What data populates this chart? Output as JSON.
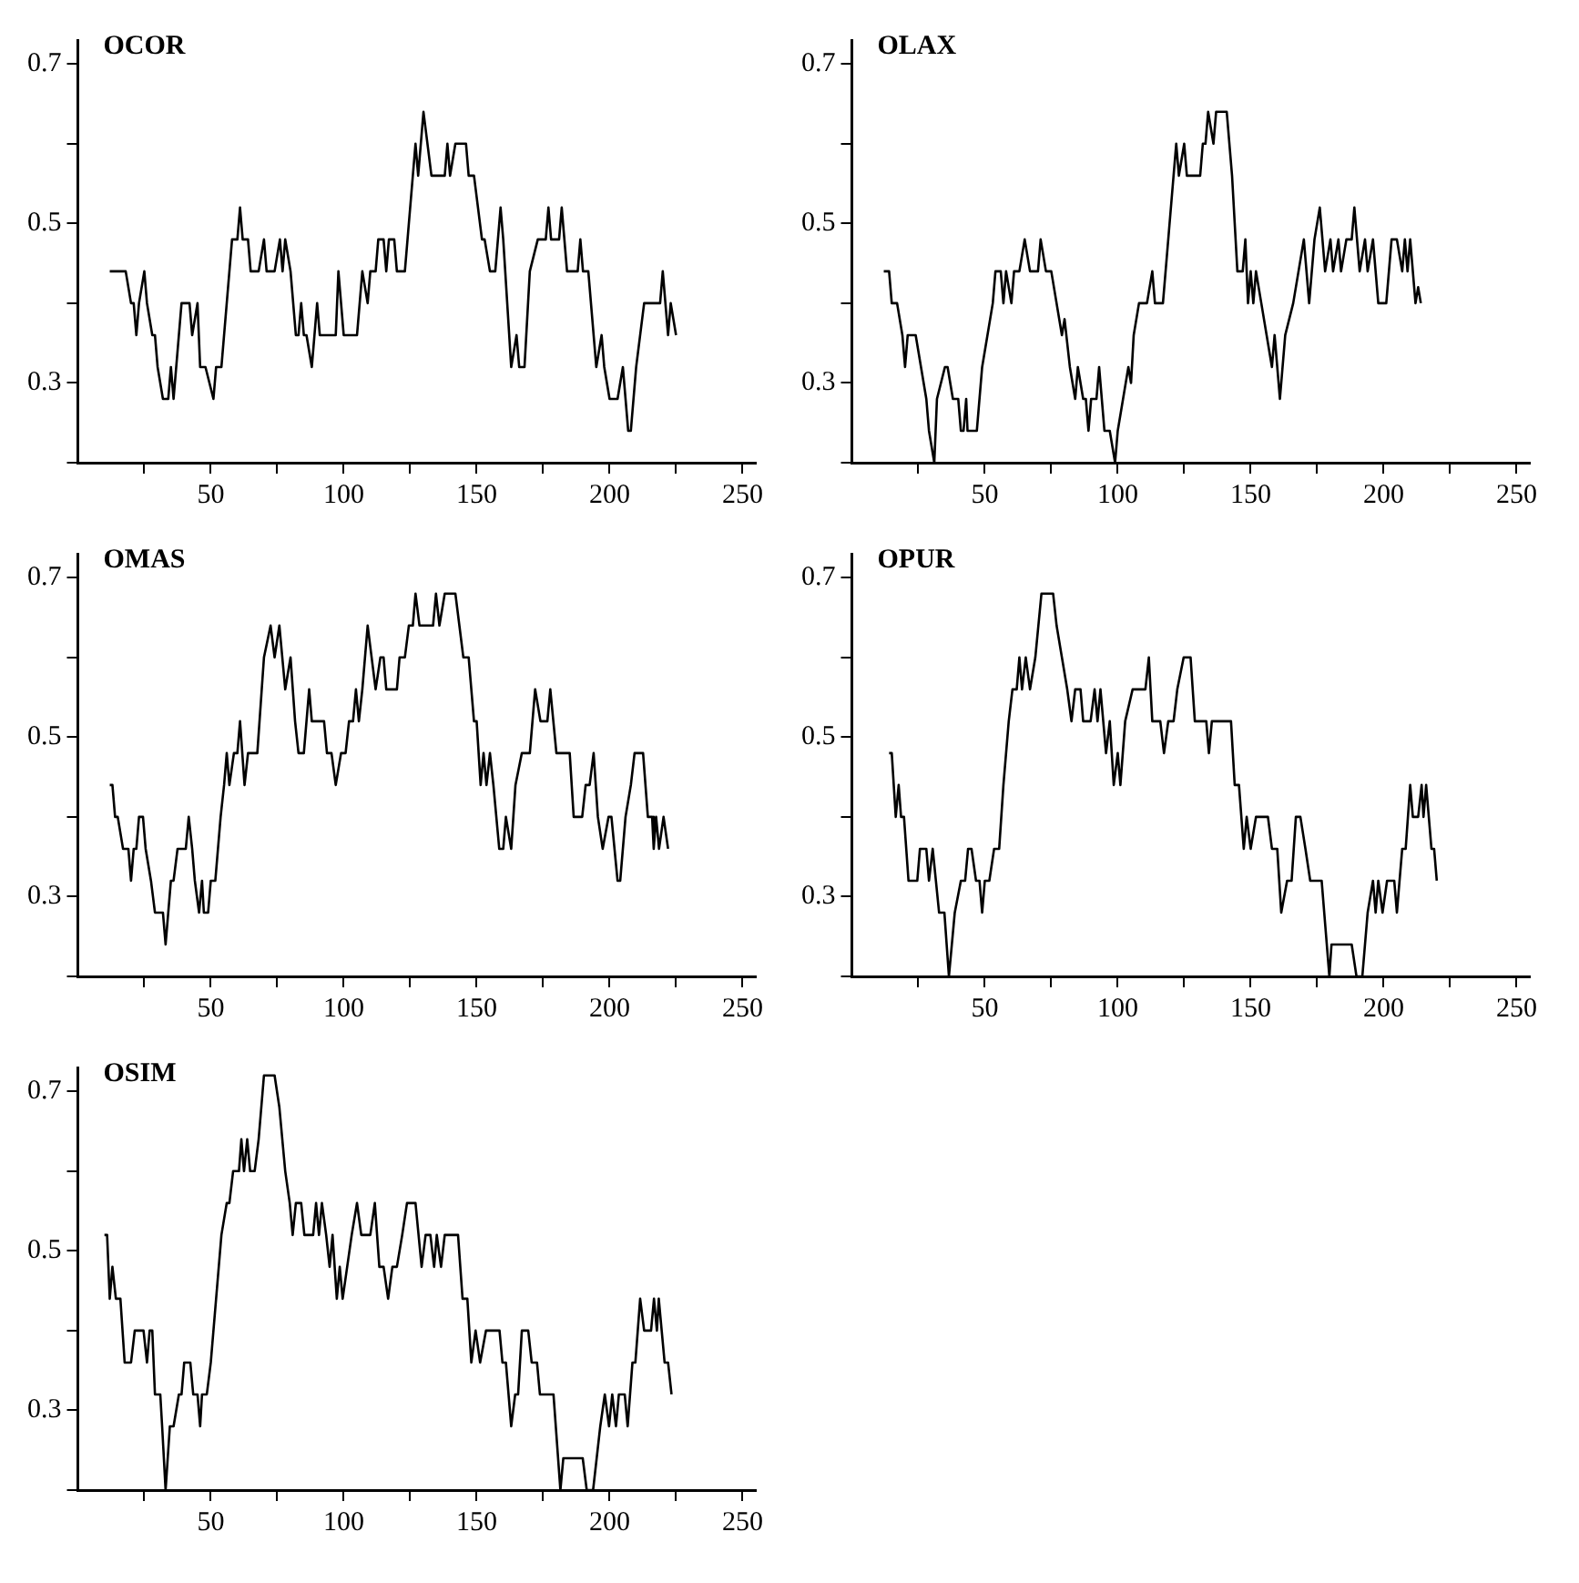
{
  "chart_data": [
    {
      "type": "line",
      "title": "OCOR",
      "color": "#000000",
      "marker": "none",
      "xlim": [
        0,
        255
      ],
      "ylim": [
        0.2,
        0.73
      ],
      "xticks": [
        {
          "value": 25,
          "label": null
        },
        50,
        {
          "value": 75,
          "label": null
        },
        100,
        {
          "value": 125,
          "label": null
        },
        150,
        {
          "value": 175,
          "label": null
        },
        200,
        {
          "value": 225,
          "label": null
        },
        250
      ],
      "yticks": [
        {
          "value": 0.2,
          "label": null
        },
        0.3,
        {
          "value": 0.4,
          "label": null
        },
        0.5,
        {
          "value": 0.6,
          "label": null
        },
        0.7
      ],
      "x": [
        12,
        18,
        20,
        21,
        22,
        23,
        25,
        26,
        28,
        29,
        30,
        32,
        34,
        35,
        36,
        38,
        39,
        42,
        43,
        45,
        46,
        48,
        51,
        52,
        54,
        58,
        60,
        61,
        62,
        64,
        65,
        68,
        70,
        71,
        74,
        76,
        77,
        78,
        80,
        82,
        83,
        84,
        85,
        86,
        88,
        90,
        91,
        97,
        98,
        100,
        105,
        107,
        109,
        110,
        112,
        113,
        115,
        116,
        117,
        119,
        120,
        123,
        127,
        128,
        130,
        133,
        138,
        139,
        140,
        142,
        146,
        147,
        149,
        152,
        153,
        155,
        157,
        159,
        160,
        163,
        165,
        166,
        168,
        170,
        173,
        176,
        177,
        178,
        181,
        182,
        184,
        188,
        189,
        190,
        192,
        195,
        197,
        198,
        200,
        203,
        205,
        207,
        208,
        210,
        213,
        219,
        220,
        222,
        223,
        225
      ],
      "values": [
        0.44,
        0.44,
        0.4,
        0.4,
        0.36,
        0.4,
        0.44,
        0.4,
        0.36,
        0.36,
        0.32,
        0.28,
        0.28,
        0.32,
        0.28,
        0.36,
        0.4,
        0.4,
        0.36,
        0.4,
        0.32,
        0.32,
        0.28,
        0.32,
        0.32,
        0.48,
        0.48,
        0.52,
        0.48,
        0.48,
        0.44,
        0.44,
        0.48,
        0.44,
        0.44,
        0.48,
        0.44,
        0.48,
        0.44,
        0.36,
        0.36,
        0.4,
        0.36,
        0.36,
        0.32,
        0.4,
        0.36,
        0.36,
        0.44,
        0.36,
        0.36,
        0.44,
        0.4,
        0.44,
        0.44,
        0.48,
        0.48,
        0.44,
        0.48,
        0.48,
        0.44,
        0.44,
        0.6,
        0.56,
        0.64,
        0.56,
        0.56,
        0.6,
        0.56,
        0.6,
        0.6,
        0.56,
        0.56,
        0.48,
        0.48,
        0.44,
        0.44,
        0.52,
        0.48,
        0.32,
        0.36,
        0.32,
        0.32,
        0.44,
        0.48,
        0.48,
        0.52,
        0.48,
        0.48,
        0.52,
        0.44,
        0.44,
        0.48,
        0.44,
        0.44,
        0.32,
        0.36,
        0.32,
        0.28,
        0.28,
        0.32,
        0.24,
        0.24,
        0.32,
        0.4,
        0.4,
        0.44,
        0.36,
        0.4,
        0.36
      ]
    },
    {
      "type": "line",
      "title": "OLAX",
      "color": "#000000",
      "marker": "none",
      "xlim": [
        0,
        255
      ],
      "ylim": [
        0.2,
        0.73
      ],
      "xticks": [
        {
          "value": 25,
          "label": null
        },
        50,
        {
          "value": 75,
          "label": null
        },
        100,
        {
          "value": 125,
          "label": null
        },
        150,
        {
          "value": 175,
          "label": null
        },
        200,
        {
          "value": 225,
          "label": null
        },
        250
      ],
      "yticks": [
        {
          "value": 0.2,
          "label": null
        },
        0.3,
        {
          "value": 0.4,
          "label": null
        },
        0.5,
        {
          "value": 0.6,
          "label": null
        },
        0.7
      ],
      "x": [
        12,
        14,
        15,
        17,
        19,
        20,
        21,
        24,
        26,
        28,
        29,
        31,
        32,
        35,
        36,
        38,
        40,
        41,
        42,
        43,
        43.5,
        47,
        49,
        51,
        53,
        54,
        56,
        57,
        58,
        60,
        61,
        63,
        65,
        67,
        70,
        71,
        73,
        75,
        78,
        79,
        80,
        82,
        84,
        85,
        87,
        88,
        89,
        90,
        92,
        93,
        95,
        97,
        99,
        100,
        102,
        104,
        105,
        106,
        108,
        111,
        113,
        114,
        117,
        121,
        122,
        123,
        125,
        126,
        131,
        132,
        133,
        134,
        136,
        137,
        141,
        143,
        145,
        147,
        148,
        149,
        150,
        151,
        152,
        154,
        156,
        158,
        159,
        161,
        163,
        166,
        168,
        170,
        172,
        174,
        176,
        178,
        180,
        181,
        183,
        184,
        186,
        188,
        189,
        191,
        193,
        194,
        196,
        198,
        201,
        203,
        205,
        207,
        208,
        209,
        210,
        212,
        213,
        214
      ],
      "values": [
        0.44,
        0.44,
        0.4,
        0.4,
        0.36,
        0.32,
        0.36,
        0.36,
        0.32,
        0.28,
        0.24,
        0.2,
        0.28,
        0.32,
        0.32,
        0.28,
        0.28,
        0.24,
        0.24,
        0.28,
        0.24,
        0.24,
        0.32,
        0.36,
        0.4,
        0.44,
        0.44,
        0.4,
        0.44,
        0.4,
        0.44,
        0.44,
        0.48,
        0.44,
        0.44,
        0.48,
        0.44,
        0.44,
        0.38,
        0.36,
        0.38,
        0.32,
        0.28,
        0.32,
        0.28,
        0.28,
        0.24,
        0.28,
        0.28,
        0.32,
        0.24,
        0.24,
        0.2,
        0.24,
        0.28,
        0.32,
        0.3,
        0.36,
        0.4,
        0.4,
        0.44,
        0.4,
        0.4,
        0.56,
        0.6,
        0.56,
        0.6,
        0.56,
        0.56,
        0.6,
        0.6,
        0.64,
        0.6,
        0.64,
        0.64,
        0.56,
        0.44,
        0.44,
        0.48,
        0.4,
        0.44,
        0.4,
        0.44,
        0.4,
        0.36,
        0.32,
        0.36,
        0.28,
        0.36,
        0.4,
        0.44,
        0.48,
        0.4,
        0.48,
        0.52,
        0.44,
        0.48,
        0.44,
        0.48,
        0.44,
        0.48,
        0.48,
        0.52,
        0.44,
        0.48,
        0.44,
        0.48,
        0.4,
        0.4,
        0.48,
        0.48,
        0.44,
        0.48,
        0.44,
        0.48,
        0.4,
        0.42,
        0.4
      ]
    },
    {
      "type": "line",
      "title": "OMAS",
      "color": "#000000",
      "marker": "none",
      "xlim": [
        0,
        255
      ],
      "ylim": [
        0.2,
        0.73
      ],
      "xticks": [
        {
          "value": 25,
          "label": null
        },
        50,
        {
          "value": 75,
          "label": null
        },
        100,
        {
          "value": 125,
          "label": null
        },
        150,
        {
          "value": 175,
          "label": null
        },
        200,
        {
          "value": 225,
          "label": null
        },
        250
      ],
      "yticks": [
        {
          "value": 0.2,
          "label": null
        },
        0.3,
        {
          "value": 0.4,
          "label": null
        },
        0.5,
        {
          "value": 0.6,
          "label": null
        },
        0.7
      ],
      "x": [
        12,
        13,
        14,
        15,
        17,
        19,
        20,
        21,
        22,
        23,
        24.5,
        25.5,
        27.5,
        29,
        32,
        33,
        35,
        36,
        37.5,
        40.6,
        41.7,
        43,
        44,
        45.6,
        46.7,
        47.4,
        49,
        50,
        51.7,
        53.7,
        55,
        56,
        57,
        58.7,
        60,
        61,
        62.7,
        64,
        67.5,
        70,
        72.5,
        74,
        75.8,
        78,
        80,
        81.7,
        83,
        85,
        87,
        88,
        92.6,
        93.7,
        95.4,
        97,
        99,
        100.7,
        102,
        103.5,
        104.6,
        105.7,
        107,
        109,
        110.5,
        112,
        113.8,
        115,
        116,
        120,
        121,
        123,
        124.5,
        126,
        127,
        128.5,
        133.6,
        134.7,
        136,
        138,
        142,
        145,
        147,
        149,
        150,
        151.5,
        152.6,
        153.7,
        155,
        156.3,
        158.5,
        160,
        161,
        163,
        164.6,
        167,
        170,
        172,
        174,
        176.6,
        177.7,
        180,
        185,
        186.5,
        189.7,
        191,
        192.5,
        194,
        195.6,
        197.4,
        199.6,
        200.7,
        203,
        204,
        206,
        208,
        209.4,
        212.6,
        214.4,
        216,
        216.6,
        217.5,
        218.6,
        220.3,
        222
      ],
      "values": [
        0.44,
        0.44,
        0.4,
        0.4,
        0.36,
        0.36,
        0.32,
        0.36,
        0.36,
        0.4,
        0.4,
        0.36,
        0.32,
        0.28,
        0.28,
        0.24,
        0.32,
        0.32,
        0.36,
        0.36,
        0.4,
        0.36,
        0.32,
        0.28,
        0.32,
        0.28,
        0.28,
        0.32,
        0.32,
        0.4,
        0.44,
        0.48,
        0.44,
        0.48,
        0.48,
        0.52,
        0.44,
        0.48,
        0.48,
        0.6,
        0.64,
        0.6,
        0.64,
        0.56,
        0.6,
        0.52,
        0.48,
        0.48,
        0.56,
        0.52,
        0.52,
        0.48,
        0.48,
        0.44,
        0.48,
        0.48,
        0.52,
        0.52,
        0.56,
        0.52,
        0.56,
        0.64,
        0.6,
        0.56,
        0.6,
        0.6,
        0.56,
        0.56,
        0.6,
        0.6,
        0.64,
        0.64,
        0.68,
        0.64,
        0.64,
        0.68,
        0.64,
        0.68,
        0.68,
        0.6,
        0.6,
        0.52,
        0.52,
        0.44,
        0.48,
        0.44,
        0.48,
        0.44,
        0.36,
        0.36,
        0.4,
        0.36,
        0.44,
        0.48,
        0.48,
        0.56,
        0.52,
        0.52,
        0.56,
        0.48,
        0.48,
        0.4,
        0.4,
        0.44,
        0.44,
        0.48,
        0.4,
        0.36,
        0.4,
        0.4,
        0.32,
        0.32,
        0.4,
        0.44,
        0.48,
        0.48,
        0.4,
        0.4,
        0.36,
        0.4,
        0.36,
        0.4,
        0.36
      ]
    },
    {
      "type": "line",
      "title": "OPUR",
      "color": "#000000",
      "marker": "none",
      "xlim": [
        0,
        255
      ],
      "ylim": [
        0.2,
        0.73
      ],
      "xticks": [
        {
          "value": 25,
          "label": null
        },
        50,
        {
          "value": 75,
          "label": null
        },
        100,
        {
          "value": 125,
          "label": null
        },
        150,
        {
          "value": 175,
          "label": null
        },
        200,
        {
          "value": 225,
          "label": null
        },
        250
      ],
      "yticks": [
        {
          "value": 0.2,
          "label": null
        },
        0.3,
        {
          "value": 0.4,
          "label": null
        },
        0.5,
        {
          "value": 0.6,
          "label": null
        },
        0.7
      ],
      "x": [
        14,
        15,
        16.5,
        17.6,
        18.5,
        19.6,
        21.3,
        24.6,
        25.6,
        28,
        29,
        30.4,
        32.8,
        34.8,
        36.5,
        38.7,
        41,
        42.6,
        43.7,
        45,
        46.7,
        48,
        49,
        50,
        51.7,
        53.5,
        55.4,
        57,
        59,
        60.4,
        62,
        63,
        64,
        65.4,
        67,
        69,
        71.3,
        75.7,
        77,
        79,
        81,
        82.6,
        84,
        86,
        87,
        89.8,
        91.3,
        92.4,
        93.5,
        95.6,
        97,
        98.5,
        100,
        101,
        102.8,
        105.6,
        110.4,
        111.7,
        113,
        116,
        117.4,
        119,
        121,
        122.4,
        124.8,
        127.4,
        129,
        133.3,
        134.3,
        135.4,
        137,
        142.6,
        144,
        145.6,
        147.4,
        148.5,
        150,
        152,
        156.5,
        158,
        160,
        161.5,
        163.7,
        165.4,
        167,
        168.7,
        170.6,
        172.4,
        176.7,
        179.6,
        180.4,
        188,
        189.8,
        192,
        194,
        196,
        197,
        198,
        199.6,
        201.3,
        204,
        205,
        207,
        208.3,
        210,
        211,
        213,
        214.3,
        215,
        216,
        217,
        218,
        219,
        220
      ],
      "values": [
        0.48,
        0.48,
        0.4,
        0.44,
        0.4,
        0.4,
        0.32,
        0.32,
        0.36,
        0.36,
        0.32,
        0.36,
        0.28,
        0.28,
        0.2,
        0.28,
        0.32,
        0.32,
        0.36,
        0.36,
        0.32,
        0.32,
        0.28,
        0.32,
        0.32,
        0.36,
        0.36,
        0.44,
        0.52,
        0.56,
        0.56,
        0.6,
        0.56,
        0.6,
        0.56,
        0.6,
        0.68,
        0.68,
        0.64,
        0.6,
        0.56,
        0.52,
        0.56,
        0.56,
        0.52,
        0.52,
        0.56,
        0.52,
        0.56,
        0.48,
        0.52,
        0.44,
        0.48,
        0.44,
        0.52,
        0.56,
        0.56,
        0.6,
        0.52,
        0.52,
        0.48,
        0.52,
        0.52,
        0.56,
        0.6,
        0.6,
        0.52,
        0.52,
        0.48,
        0.52,
        0.52,
        0.52,
        0.44,
        0.44,
        0.36,
        0.4,
        0.36,
        0.4,
        0.4,
        0.36,
        0.36,
        0.28,
        0.32,
        0.32,
        0.4,
        0.4,
        0.36,
        0.32,
        0.32,
        0.2,
        0.24,
        0.24,
        0.2,
        0.2,
        0.28,
        0.32,
        0.28,
        0.32,
        0.28,
        0.32,
        0.32,
        0.28,
        0.36,
        0.36,
        0.44,
        0.4,
        0.4,
        0.44,
        0.4,
        0.44,
        0.4,
        0.36,
        0.36,
        0.32
      ]
    },
    {
      "type": "line",
      "title": "OSIM",
      "color": "#000000",
      "marker": "none",
      "xlim": [
        0,
        255
      ],
      "ylim": [
        0.2,
        0.73
      ],
      "xticks": [
        {
          "value": 25,
          "label": null
        },
        50,
        {
          "value": 75,
          "label": null
        },
        100,
        {
          "value": 125,
          "label": null
        },
        150,
        {
          "value": 175,
          "label": null
        },
        200,
        {
          "value": 225,
          "label": null
        },
        250
      ],
      "yticks": [
        {
          "value": 0.2,
          "label": null
        },
        0.3,
        {
          "value": 0.4,
          "label": null
        },
        0.5,
        {
          "value": 0.6,
          "label": null
        },
        0.7
      ],
      "x": [
        10,
        11,
        12,
        13,
        14.3,
        16,
        17.6,
        20,
        21.4,
        24.7,
        26,
        27,
        28,
        29,
        31,
        31.7,
        33,
        34.6,
        36,
        38,
        39,
        40,
        42.3,
        43.4,
        45,
        46,
        46.7,
        48.5,
        50,
        52,
        54,
        56,
        57,
        58.4,
        60.6,
        61.5,
        62.5,
        63.7,
        64.8,
        66.5,
        68,
        70,
        74,
        75.8,
        78,
        79.7,
        80.8,
        82,
        84,
        85.2,
        88.5,
        89.6,
        90.7,
        91.8,
        93.4,
        94.7,
        95.8,
        97.4,
        98.5,
        99.6,
        101.3,
        103,
        105,
        106.6,
        110,
        111.7,
        113.4,
        115,
        116.7,
        118.3,
        120,
        122,
        123.8,
        127,
        129.3,
        130.8,
        132.6,
        134,
        135,
        136.6,
        138,
        143,
        144.7,
        146.5,
        148,
        149.6,
        151.3,
        153.5,
        158.6,
        159.7,
        161,
        163,
        164.5,
        165.6,
        167,
        169.4,
        170.7,
        172.7,
        173.8,
        178.9,
        181.5,
        182.6,
        189.9,
        191.4,
        193.8,
        196.5,
        198.2,
        199.8,
        201,
        202.4,
        203.5,
        205.7,
        206.8,
        208.6,
        209.7,
        211.5,
        213,
        215.6,
        216.7,
        217.8,
        218.5,
        219.6,
        220.7,
        222,
        223.3
      ],
      "values": [
        0.52,
        0.52,
        0.44,
        0.48,
        0.44,
        0.44,
        0.36,
        0.36,
        0.4,
        0.4,
        0.36,
        0.4,
        0.4,
        0.32,
        0.32,
        0.28,
        0.2,
        0.28,
        0.28,
        0.32,
        0.32,
        0.36,
        0.36,
        0.32,
        0.32,
        0.28,
        0.32,
        0.32,
        0.36,
        0.44,
        0.52,
        0.56,
        0.56,
        0.6,
        0.6,
        0.64,
        0.6,
        0.64,
        0.6,
        0.6,
        0.64,
        0.72,
        0.72,
        0.68,
        0.6,
        0.56,
        0.52,
        0.56,
        0.56,
        0.52,
        0.52,
        0.56,
        0.52,
        0.56,
        0.52,
        0.48,
        0.52,
        0.44,
        0.48,
        0.44,
        0.48,
        0.52,
        0.56,
        0.52,
        0.52,
        0.56,
        0.48,
        0.48,
        0.44,
        0.48,
        0.48,
        0.52,
        0.56,
        0.56,
        0.48,
        0.52,
        0.52,
        0.48,
        0.52,
        0.48,
        0.52,
        0.52,
        0.44,
        0.44,
        0.36,
        0.4,
        0.36,
        0.4,
        0.4,
        0.36,
        0.36,
        0.28,
        0.32,
        0.32,
        0.4,
        0.4,
        0.36,
        0.36,
        0.32,
        0.32,
        0.2,
        0.24,
        0.24,
        0.2,
        0.2,
        0.28,
        0.32,
        0.28,
        0.32,
        0.28,
        0.32,
        0.32,
        0.28,
        0.36,
        0.36,
        0.44,
        0.4,
        0.4,
        0.44,
        0.4,
        0.44,
        0.4,
        0.36,
        0.36,
        0.32
      ]
    }
  ]
}
